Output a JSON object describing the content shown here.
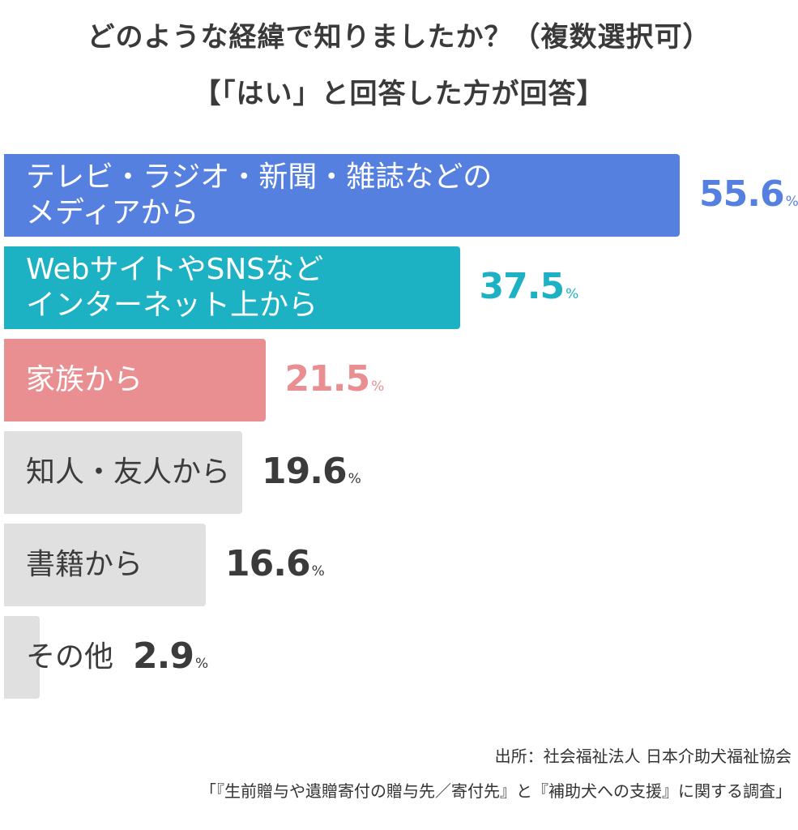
{
  "title": "どのような経緯で知りましたか？（複数選択可）",
  "subtitle": "【「はい」と回答した方が回答】",
  "chart_data": {
    "type": "bar",
    "orientation": "horizontal",
    "categories": [
      "テレビ・ラジオ・新聞・雑誌などの\nメディアから",
      "WebサイトやSNSなど\nインターネット上から",
      "家族から",
      "知人・友人から",
      "書籍から",
      "その他"
    ],
    "values": [
      55.6,
      37.5,
      21.5,
      19.6,
      16.6,
      2.9
    ],
    "unit": "%",
    "colors": [
      "#5680e0",
      "#1db1c4",
      "#ea8f91",
      "#e0e0e0",
      "#e0e0e0",
      "#e0e0e0"
    ],
    "value_colors": [
      "#5680e0",
      "#1db1c4",
      "#ea8f91",
      "#3b3b3b",
      "#3b3b3b",
      "#3b3b3b"
    ],
    "label_colors": [
      "#ffffff",
      "#ffffff",
      "#ffffff",
      "#3b3b3b",
      "#3b3b3b",
      "#3b3b3b"
    ]
  },
  "source": {
    "line1": "出所：社会福祉法人 日本介助犬福祉協会",
    "line2": "「『生前贈与や遺贈寄付の贈与先／寄付先』と『補助犬への支援』に関する調査」"
  }
}
